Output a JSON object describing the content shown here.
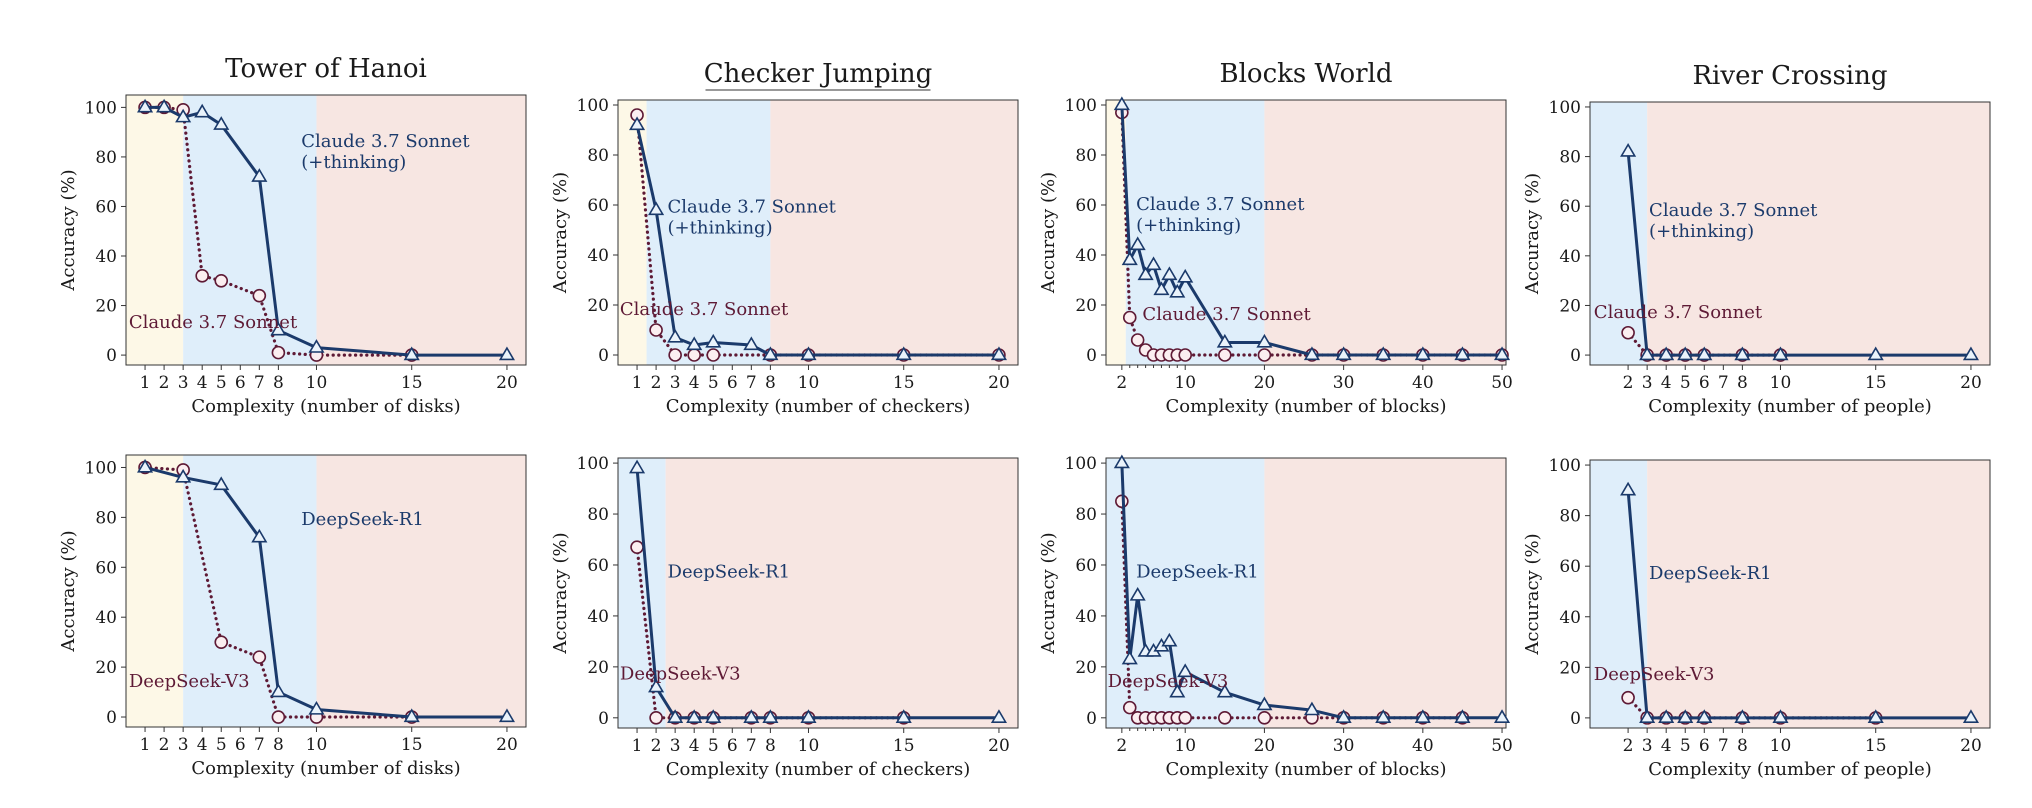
{
  "chart_data": [
    {
      "type": "line",
      "title": "Tower of Hanoi",
      "xlabel": "Complexity (number of disks)",
      "ylabel": "Accuracy (%)",
      "xlim": [
        0,
        21
      ],
      "ylim": [
        -4,
        105
      ],
      "xticks": [
        1,
        2,
        3,
        4,
        5,
        6,
        7,
        8,
        10,
        15,
        20
      ],
      "yticks": [
        0,
        20,
        40,
        60,
        80,
        100
      ],
      "regions": [
        {
          "from": 0,
          "to": 3,
          "color": "#fdf8e7"
        },
        {
          "from": 3,
          "to": 10,
          "color": "#dfeefa"
        },
        {
          "from": 10,
          "to": 21,
          "color": "#f7e6e2"
        }
      ],
      "series": [
        {
          "name": "Claude 3.7 Sonnet (+thinking)",
          "style": "solid",
          "marker": "triangle",
          "color": "#1b3a6b",
          "x": [
            1,
            2,
            3,
            4,
            5,
            7,
            8,
            10,
            15,
            20
          ],
          "y": [
            100,
            100,
            96,
            98,
            93,
            72,
            10,
            3,
            0,
            0
          ]
        },
        {
          "name": "Claude 3.7 Sonnet",
          "style": "dotted",
          "marker": "circle",
          "color": "#5e1a35",
          "x": [
            1,
            2,
            3,
            4,
            5,
            7,
            8,
            10,
            15
          ],
          "y": [
            100,
            100,
            99,
            32,
            30,
            24,
            1,
            0,
            0
          ]
        }
      ],
      "annotations": [
        {
          "lines": [
            "Claude 3.7 Sonnet",
            "(+thinking)"
          ],
          "color": "#1b3a6b",
          "x": 9.2,
          "y": 84
        },
        {
          "lines": [
            "Claude 3.7 Sonnet"
          ],
          "color": "#5e1a35",
          "x": 0.15,
          "y": 11
        }
      ]
    },
    {
      "type": "line",
      "title": "Checker Jumping",
      "title_underline": true,
      "xlabel": "Complexity (number of checkers)",
      "ylabel": "Accuracy (%)",
      "xlim": [
        0,
        21
      ],
      "ylim": [
        -4,
        102
      ],
      "xticks": [
        1,
        2,
        3,
        4,
        5,
        6,
        7,
        8,
        10,
        15,
        20
      ],
      "yticks": [
        0,
        20,
        40,
        60,
        80,
        100
      ],
      "regions": [
        {
          "from": 0,
          "to": 1.5,
          "color": "#fdf8e7"
        },
        {
          "from": 1.5,
          "to": 8,
          "color": "#dfeefa"
        },
        {
          "from": 8,
          "to": 21,
          "color": "#f7e6e2"
        }
      ],
      "series": [
        {
          "name": "Claude 3.7 Sonnet (+thinking)",
          "style": "solid",
          "marker": "triangle",
          "color": "#1b3a6b",
          "x": [
            1,
            2,
            3,
            4,
            5,
            7,
            8,
            10,
            15,
            20
          ],
          "y": [
            92,
            58,
            7,
            4,
            5,
            4,
            0,
            0,
            0,
            0
          ]
        },
        {
          "name": "Claude 3.7 Sonnet",
          "style": "dotted",
          "marker": "circle",
          "color": "#5e1a35",
          "x": [
            1,
            2,
            3,
            4,
            5,
            8,
            10,
            15,
            20
          ],
          "y": [
            96,
            10,
            0,
            0,
            0,
            0,
            0,
            0,
            0
          ]
        }
      ],
      "annotations": [
        {
          "lines": [
            "Claude 3.7 Sonnet",
            "(+thinking)"
          ],
          "color": "#1b3a6b",
          "x": 2.6,
          "y": 57
        },
        {
          "lines": [
            "Claude 3.7 Sonnet"
          ],
          "color": "#5e1a35",
          "x": 0.1,
          "y": 16
        }
      ]
    },
    {
      "type": "line",
      "title": "Blocks World",
      "xlabel": "Complexity (number of blocks)",
      "ylabel": "Accuracy (%)",
      "xlim": [
        0,
        50.5
      ],
      "ylim": [
        -4,
        102
      ],
      "xticks": [
        2,
        10,
        20,
        30,
        40,
        50
      ],
      "yticks": [
        0,
        20,
        40,
        60,
        80,
        100
      ],
      "minor_xticks": [
        3,
        4,
        5,
        6,
        7,
        8,
        9
      ],
      "regions": [
        {
          "from": 0,
          "to": 2.5,
          "color": "#fdf8e7"
        },
        {
          "from": 2.5,
          "to": 20,
          "color": "#dfeefa"
        },
        {
          "from": 20,
          "to": 50.5,
          "color": "#f7e6e2"
        }
      ],
      "series": [
        {
          "name": "Claude 3.7 Sonnet (+thinking)",
          "style": "solid",
          "marker": "triangle",
          "color": "#1b3a6b",
          "x": [
            2,
            3,
            4,
            5,
            6,
            7,
            8,
            9,
            10,
            15,
            20,
            26,
            30,
            35,
            40,
            45,
            50
          ],
          "y": [
            100,
            38,
            44,
            32,
            36,
            26,
            32,
            25,
            31,
            5,
            5,
            0,
            0,
            0,
            0,
            0,
            0
          ]
        },
        {
          "name": "Claude 3.7 Sonnet",
          "style": "dotted",
          "marker": "circle",
          "color": "#5e1a35",
          "x": [
            2,
            3,
            4,
            5,
            6,
            7,
            8,
            9,
            10,
            15,
            20,
            26,
            30,
            35,
            40,
            45,
            50
          ],
          "y": [
            97,
            15,
            6,
            2,
            0,
            0,
            0,
            0,
            0,
            0,
            0,
            0,
            0,
            0,
            0,
            0,
            0
          ]
        }
      ],
      "annotations": [
        {
          "lines": [
            "Claude 3.7 Sonnet",
            "(+thinking)"
          ],
          "color": "#1b3a6b",
          "x": 3.8,
          "y": 58
        },
        {
          "lines": [
            "Claude 3.7 Sonnet"
          ],
          "color": "#5e1a35",
          "x": 4.6,
          "y": 14
        }
      ]
    },
    {
      "type": "line",
      "title": "River Crossing",
      "xlabel": "Complexity (number of people)",
      "ylabel": "Accuracy (%)",
      "xlim": [
        0,
        21
      ],
      "ylim": [
        -4,
        102
      ],
      "xticks": [
        2,
        3,
        4,
        5,
        6,
        7,
        8,
        10,
        15,
        20
      ],
      "yticks": [
        0,
        20,
        40,
        60,
        80,
        100
      ],
      "regions": [
        {
          "from": 0,
          "to": 3,
          "color": "#dfeefa"
        },
        {
          "from": 3,
          "to": 21,
          "color": "#f7e6e2"
        }
      ],
      "series": [
        {
          "name": "Claude 3.7 Sonnet (+thinking)",
          "style": "solid",
          "marker": "triangle",
          "color": "#1b3a6b",
          "x": [
            2,
            3,
            4,
            5,
            6,
            8,
            10,
            15,
            20
          ],
          "y": [
            82,
            0,
            0,
            0,
            0,
            0,
            0,
            0,
            0
          ]
        },
        {
          "name": "Claude 3.7 Sonnet",
          "style": "dotted",
          "marker": "circle",
          "color": "#5e1a35",
          "x": [
            2,
            3,
            4,
            5,
            6,
            8,
            10
          ],
          "y": [
            9,
            0,
            0,
            0,
            0,
            0,
            0
          ]
        }
      ],
      "annotations": [
        {
          "lines": [
            "Claude 3.7 Sonnet",
            "(+thinking)"
          ],
          "color": "#1b3a6b",
          "x": 3.1,
          "y": 56
        },
        {
          "lines": [
            "Claude 3.7 Sonnet"
          ],
          "color": "#5e1a35",
          "x": 0.2,
          "y": 15
        }
      ]
    },
    {
      "type": "line",
      "title": "",
      "xlabel": "Complexity (number of disks)",
      "ylabel": "Accuracy (%)",
      "xlim": [
        0,
        21
      ],
      "ylim": [
        -4,
        105
      ],
      "xticks": [
        1,
        2,
        3,
        4,
        5,
        6,
        7,
        8,
        10,
        15,
        20
      ],
      "yticks": [
        0,
        20,
        40,
        60,
        80,
        100
      ],
      "regions": [
        {
          "from": 0,
          "to": 3,
          "color": "#fdf8e7"
        },
        {
          "from": 3,
          "to": 10,
          "color": "#dfeefa"
        },
        {
          "from": 10,
          "to": 21,
          "color": "#f7e6e2"
        }
      ],
      "series": [
        {
          "name": "DeepSeek-R1",
          "style": "solid",
          "marker": "triangle",
          "color": "#1b3a6b",
          "x": [
            1,
            3,
            5,
            7,
            8,
            10,
            15,
            20
          ],
          "y": [
            100,
            96,
            93,
            72,
            10,
            3,
            0,
            0
          ]
        },
        {
          "name": "DeepSeek-V3",
          "style": "dotted",
          "marker": "circle",
          "color": "#5e1a35",
          "x": [
            1,
            3,
            5,
            7,
            8,
            10,
            15
          ],
          "y": [
            100,
            99,
            30,
            24,
            0,
            0,
            0
          ]
        }
      ],
      "annotations": [
        {
          "lines": [
            "DeepSeek-R1"
          ],
          "color": "#1b3a6b",
          "x": 9.2,
          "y": 77
        },
        {
          "lines": [
            "DeepSeek-V3"
          ],
          "color": "#5e1a35",
          "x": 0.15,
          "y": 12
        }
      ]
    },
    {
      "type": "line",
      "title": "",
      "xlabel": "Complexity (number of checkers)",
      "ylabel": "Accuracy (%)",
      "xlim": [
        0,
        21
      ],
      "ylim": [
        -4,
        102
      ],
      "xticks": [
        1,
        2,
        3,
        4,
        5,
        6,
        7,
        8,
        10,
        15,
        20
      ],
      "yticks": [
        0,
        20,
        40,
        60,
        80,
        100
      ],
      "regions": [
        {
          "from": 0,
          "to": 2.5,
          "color": "#dfeefa"
        },
        {
          "from": 2.5,
          "to": 21,
          "color": "#f7e6e2"
        }
      ],
      "series": [
        {
          "name": "DeepSeek-R1",
          "style": "solid",
          "marker": "triangle",
          "color": "#1b3a6b",
          "x": [
            1,
            2,
            3,
            4,
            5,
            7,
            8,
            10,
            15,
            20
          ],
          "y": [
            98,
            12,
            0,
            0,
            0,
            0,
            0,
            0,
            0,
            0
          ]
        },
        {
          "name": "DeepSeek-V3",
          "style": "dotted",
          "marker": "circle",
          "color": "#5e1a35",
          "x": [
            1,
            2,
            3,
            4,
            5,
            7,
            8,
            10,
            15
          ],
          "y": [
            67,
            0,
            0,
            0,
            0,
            0,
            0,
            0,
            0
          ]
        }
      ],
      "annotations": [
        {
          "lines": [
            "DeepSeek-R1"
          ],
          "color": "#1b3a6b",
          "x": 2.6,
          "y": 55
        },
        {
          "lines": [
            "DeepSeek-V3"
          ],
          "color": "#5e1a35",
          "x": 0.1,
          "y": 15
        }
      ]
    },
    {
      "type": "line",
      "title": "",
      "xlabel": "Complexity (number of blocks)",
      "ylabel": "Accuracy (%)",
      "xlim": [
        0,
        50.5
      ],
      "ylim": [
        -4,
        102
      ],
      "xticks": [
        2,
        10,
        20,
        30,
        40,
        50
      ],
      "yticks": [
        0,
        20,
        40,
        60,
        80,
        100
      ],
      "minor_xticks": [
        3,
        4,
        5,
        6,
        7,
        8,
        9
      ],
      "regions": [
        {
          "from": 0,
          "to": 20,
          "color": "#dfeefa"
        },
        {
          "from": 20,
          "to": 50.5,
          "color": "#f7e6e2"
        }
      ],
      "series": [
        {
          "name": "DeepSeek-R1",
          "style": "solid",
          "marker": "triangle",
          "color": "#1b3a6b",
          "x": [
            2,
            3,
            4,
            5,
            6,
            7,
            8,
            9,
            10,
            15,
            20,
            26,
            30,
            35,
            40,
            45,
            50
          ],
          "y": [
            100,
            23,
            48,
            26,
            26,
            28,
            30,
            10,
            18,
            10,
            5,
            3,
            0,
            0,
            0,
            0,
            0
          ]
        },
        {
          "name": "DeepSeek-V3",
          "style": "dotted",
          "marker": "circle",
          "color": "#5e1a35",
          "x": [
            2,
            3,
            4,
            5,
            6,
            7,
            8,
            9,
            10,
            15,
            20,
            26,
            30,
            35,
            40,
            45
          ],
          "y": [
            85,
            4,
            0,
            0,
            0,
            0,
            0,
            0,
            0,
            0,
            0,
            0,
            0,
            0,
            0,
            0
          ]
        }
      ],
      "annotations": [
        {
          "lines": [
            "DeepSeek-R1"
          ],
          "color": "#1b3a6b",
          "x": 3.8,
          "y": 55
        },
        {
          "lines": [
            "DeepSeek-V3"
          ],
          "color": "#5e1a35",
          "x": 0.2,
          "y": 12
        }
      ]
    },
    {
      "type": "line",
      "title": "",
      "xlabel": "Complexity (number of people)",
      "ylabel": "Accuracy (%)",
      "xlim": [
        0,
        21
      ],
      "ylim": [
        -4,
        102
      ],
      "xticks": [
        2,
        3,
        4,
        5,
        6,
        7,
        8,
        10,
        15,
        20
      ],
      "yticks": [
        0,
        20,
        40,
        60,
        80,
        100
      ],
      "regions": [
        {
          "from": 0,
          "to": 3,
          "color": "#dfeefa"
        },
        {
          "from": 3,
          "to": 21,
          "color": "#f7e6e2"
        }
      ],
      "series": [
        {
          "name": "DeepSeek-R1",
          "style": "solid",
          "marker": "triangle",
          "color": "#1b3a6b",
          "x": [
            2,
            3,
            4,
            5,
            6,
            8,
            10,
            15,
            20
          ],
          "y": [
            90,
            0,
            0,
            0,
            0,
            0,
            0,
            0,
            0
          ]
        },
        {
          "name": "DeepSeek-V3",
          "style": "dotted",
          "marker": "circle",
          "color": "#5e1a35",
          "x": [
            2,
            3,
            4,
            5,
            6,
            8,
            10,
            15
          ],
          "y": [
            8,
            0,
            0,
            0,
            0,
            0,
            0,
            0
          ]
        }
      ],
      "annotations": [
        {
          "lines": [
            "DeepSeek-R1"
          ],
          "color": "#1b3a6b",
          "x": 3.1,
          "y": 55
        },
        {
          "lines": [
            "DeepSeek-V3"
          ],
          "color": "#5e1a35",
          "x": 0.2,
          "y": 15
        }
      ]
    }
  ]
}
